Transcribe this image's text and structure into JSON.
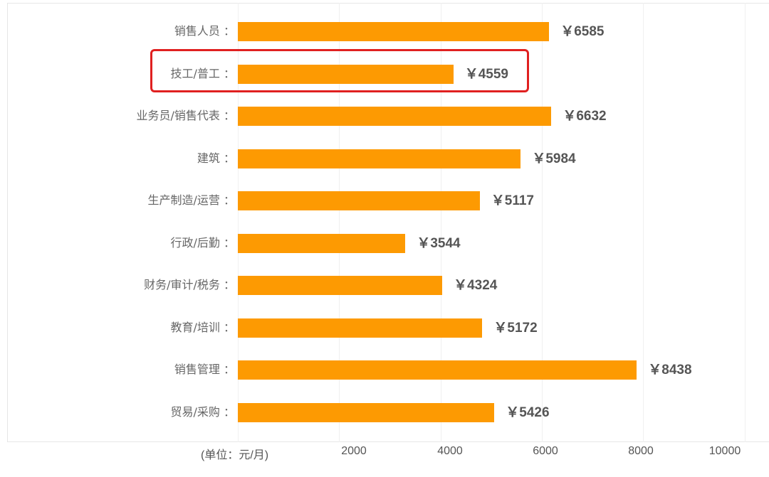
{
  "chart_data": {
    "type": "bar",
    "orientation": "horizontal",
    "title": "",
    "xlabel": "(单位：元/月)",
    "ylabel": "",
    "xlim": [
      0,
      10000
    ],
    "x_ticks": [
      "2000",
      "4000",
      "6000",
      "8000",
      "10000"
    ],
    "grid": true,
    "bar_color": "#fd9a02",
    "highlight_color": "#e02020",
    "highlighted_category": "技工/普工",
    "categories": [
      "销售人员",
      "技工/普工",
      "业务员/销售代表",
      "建筑",
      "生产制造/运营",
      "行政/后勤",
      "财务/审计/税务",
      "教育/培训",
      "销售管理",
      "贸易/采购"
    ],
    "values": [
      6585,
      4559,
      6632,
      5984,
      5117,
      3544,
      4324,
      5172,
      8438,
      5426
    ],
    "value_labels": [
      "￥6585",
      "￥4559",
      "￥6632",
      "￥5984",
      "￥5117",
      "￥3544",
      "￥4324",
      "￥5172",
      "￥8438",
      "￥5426"
    ]
  },
  "rows": [
    {
      "label": "销售人员 ：",
      "value": "￥6585"
    },
    {
      "label": "技工/普工 ：",
      "value": "￥4559"
    },
    {
      "label": "业务员/销售代表 ：",
      "value": "￥6632"
    },
    {
      "label": "建筑 ：",
      "value": "￥5984"
    },
    {
      "label": "生产制造/运营 ：",
      "value": "￥5117"
    },
    {
      "label": "行政/后勤 ：",
      "value": "￥3544"
    },
    {
      "label": "财务/审计/税务 ：",
      "value": "￥4324"
    },
    {
      "label": "教育/培训 ：",
      "value": "￥5172"
    },
    {
      "label": "销售管理 ：",
      "value": "￥8438"
    },
    {
      "label": "贸易/采购 ：",
      "value": "￥5426"
    }
  ],
  "axis": {
    "unit": "(单位：元/月)",
    "ticks": [
      "2000",
      "4000",
      "6000",
      "8000",
      "10000"
    ]
  }
}
